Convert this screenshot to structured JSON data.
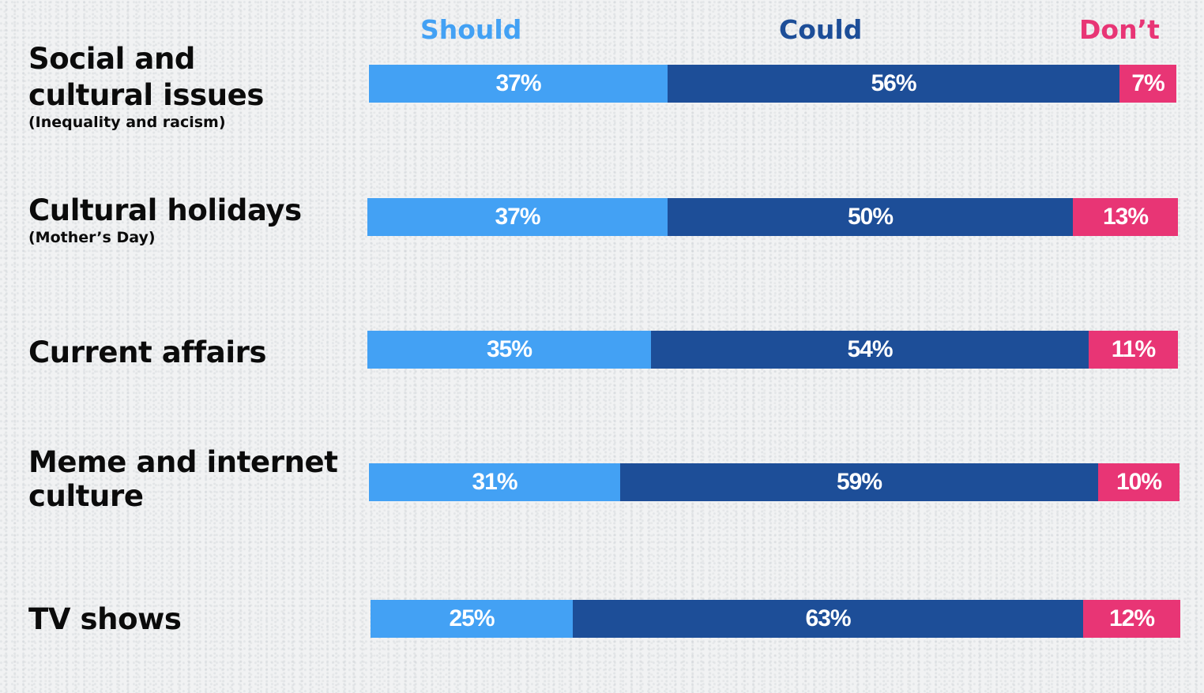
{
  "colors": {
    "should": "#43a1f4",
    "could": "#1d4e98",
    "dont": "#e83575"
  },
  "chart_data": {
    "type": "bar",
    "stacked": true,
    "orientation": "horizontal",
    "series_labels": [
      "Should",
      "Could",
      "Don’t"
    ],
    "categories": [
      {
        "title": "Social and cultural issues",
        "subtitle": "(Inequality and racism)",
        "values": [
          37,
          56,
          7
        ],
        "labels": [
          "37%",
          "56%",
          "7%"
        ]
      },
      {
        "title": "Cultural holidays",
        "subtitle": "(Mother’s Day)",
        "values": [
          37,
          50,
          13
        ],
        "labels": [
          "37%",
          "50%",
          "13%"
        ]
      },
      {
        "title": "Current affairs",
        "subtitle": "",
        "values": [
          35,
          54,
          11
        ],
        "labels": [
          "35%",
          "54%",
          "11%"
        ]
      },
      {
        "title": "Meme and internet culture",
        "subtitle": "",
        "values": [
          31,
          59,
          10
        ],
        "labels": [
          "31%",
          "59%",
          "10%"
        ]
      },
      {
        "title": "TV shows",
        "subtitle": "",
        "values": [
          25,
          63,
          12
        ],
        "labels": [
          "25%",
          "63%",
          "12%"
        ]
      }
    ]
  }
}
